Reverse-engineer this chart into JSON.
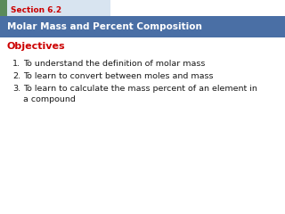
{
  "section_label": "Section 6.2",
  "title": "Molar Mass and Percent Composition",
  "objectives_label": "Objectives",
  "items": [
    "To understand the definition of molar mass",
    "To learn to convert between moles and mass",
    "To learn to calculate the mass percent of an element in\na compound"
  ],
  "bg_color": "#ffffff",
  "header_bg_color": "#4a6fa5",
  "section_tab_bg": "#d8e4f0",
  "section_green_sq": "#5a8a5a",
  "section_text_color": "#cc0000",
  "title_text_color": "#ffffff",
  "objectives_color": "#cc0000",
  "body_text_color": "#1a1a1a",
  "fig_width": 3.2,
  "fig_height": 2.4,
  "dpi": 100
}
